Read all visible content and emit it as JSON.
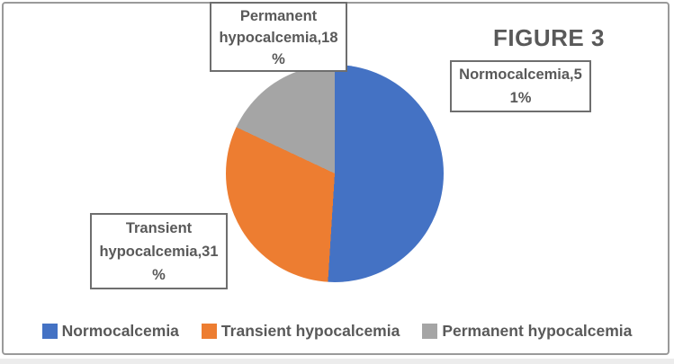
{
  "figure": {
    "title": "FIGURE 3"
  },
  "chart_data": {
    "type": "pie",
    "title": "FIGURE 3",
    "start_angle_deg": 0,
    "direction": "clockwise",
    "legend_position": "bottom",
    "slices": [
      {
        "label": "Normocalcemia",
        "value": 51,
        "color": "#4472C4",
        "data_label": "Normocalcemia,51%"
      },
      {
        "label": "Transient hypocalcemia",
        "value": 31,
        "color": "#ED7D31",
        "data_label": "Transient hypocalcemia,31%"
      },
      {
        "label": "Permanent hypocalcemia",
        "value": 18,
        "color": "#A5A5A5",
        "data_label": "Permanent hypocalcemia,18%"
      }
    ]
  },
  "labels": {
    "permanent": {
      "line1": "Permanent",
      "line2": "hypocalcemia,18",
      "line3": "%"
    },
    "normocalcemia": {
      "line1": "Normocalcemia,5",
      "line2": "1%"
    },
    "transient": {
      "line1": "Transient",
      "line2": "hypocalcemia,31",
      "line3": "%"
    }
  },
  "legend": {
    "items": [
      {
        "label": "Normocalcemia",
        "color": "#4472C4"
      },
      {
        "label": "Transient hypocalcemia",
        "color": "#ED7D31"
      },
      {
        "label": "Permanent hypocalcemia",
        "color": "#A5A5A5"
      }
    ]
  },
  "colors": {
    "blue": "#4472C4",
    "orange": "#ED7D31",
    "gray": "#A5A5A5",
    "text": "#595959",
    "frame_border": "#9a9a9a",
    "callout_border": "#6e6e6e"
  }
}
